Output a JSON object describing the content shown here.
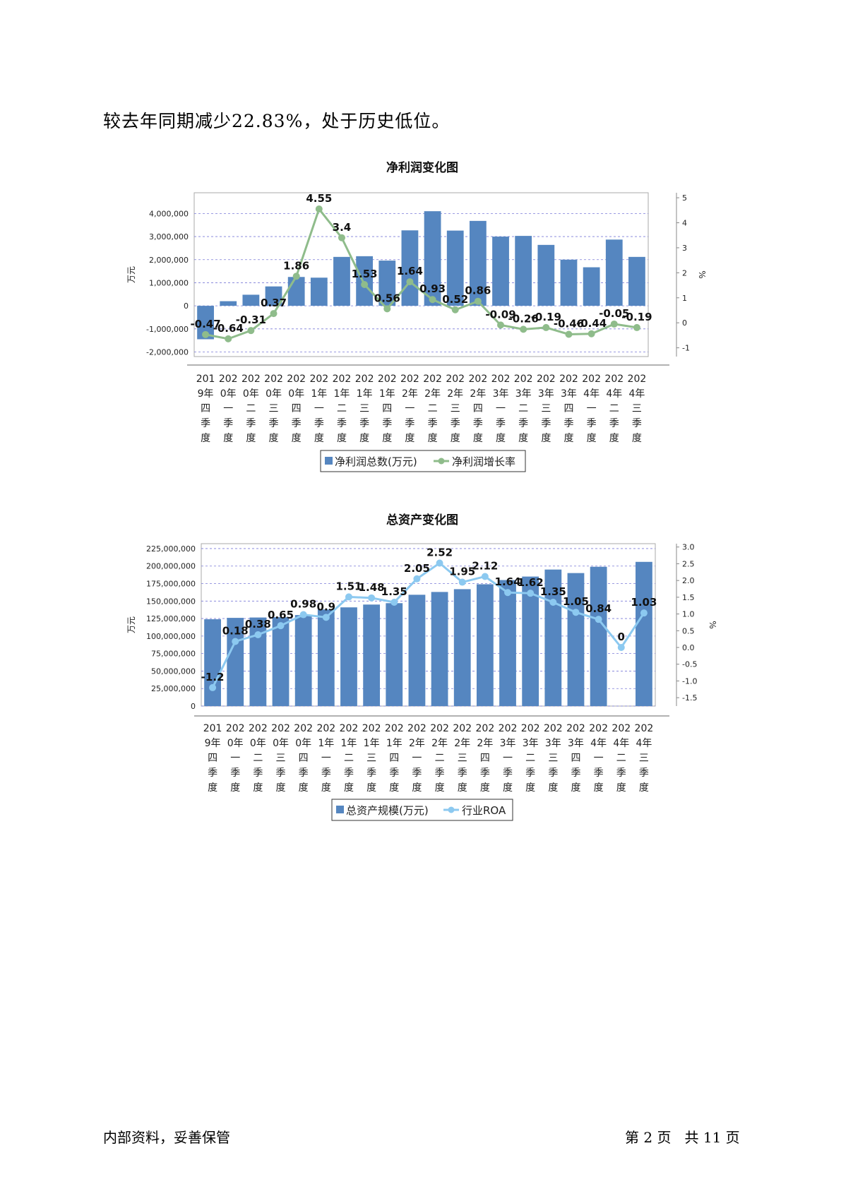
{
  "intro_text": "较去年同期减少22.83%，处于历史低位。",
  "footer": {
    "left": "内部资料，妥善保管",
    "page_label": "第 2 页   共 11 页"
  },
  "chart_data": [
    {
      "type": "bar",
      "title": "净利润变化图",
      "ylabel": "万元",
      "y2label": "%",
      "ylim": [
        -2200000,
        4900000
      ],
      "yticks": [
        -2000000,
        -1000000,
        0,
        1000000,
        2000000,
        3000000,
        4000000
      ],
      "ytick_labels": [
        "-2,000,000",
        "-1,000,000",
        "0",
        "1,000,000",
        "2,000,000",
        "3,000,000",
        "4,000,000"
      ],
      "y2lim": [
        -1.35,
        5.2
      ],
      "y2ticks": [
        -1,
        0,
        1,
        2,
        3,
        4,
        5
      ],
      "y2tick_labels": [
        "-1",
        "0",
        "1",
        "2",
        "3",
        "4",
        "5"
      ],
      "grid": true,
      "legend_position": "bottom",
      "categories": [
        [
          "201",
          "9年",
          "四",
          "季",
          "度"
        ],
        [
          "202",
          "0年",
          "一",
          "季",
          "度"
        ],
        [
          "202",
          "0年",
          "二",
          "季",
          "度"
        ],
        [
          "202",
          "0年",
          "三",
          "季",
          "度"
        ],
        [
          "202",
          "0年",
          "四",
          "季",
          "度"
        ],
        [
          "202",
          "1年",
          "一",
          "季",
          "度"
        ],
        [
          "202",
          "1年",
          "二",
          "季",
          "度"
        ],
        [
          "202",
          "1年",
          "三",
          "季",
          "度"
        ],
        [
          "202",
          "1年",
          "四",
          "季",
          "度"
        ],
        [
          "202",
          "2年",
          "一",
          "季",
          "度"
        ],
        [
          "202",
          "2年",
          "二",
          "季",
          "度"
        ],
        [
          "202",
          "2年",
          "三",
          "季",
          "度"
        ],
        [
          "202",
          "2年",
          "四",
          "季",
          "度"
        ],
        [
          "202",
          "3年",
          "一",
          "季",
          "度"
        ],
        [
          "202",
          "3年",
          "二",
          "季",
          "度"
        ],
        [
          "202",
          "3年",
          "三",
          "季",
          "度"
        ],
        [
          "202",
          "3年",
          "四",
          "季",
          "度"
        ],
        [
          "202",
          "4年",
          "一",
          "季",
          "度"
        ],
        [
          "202",
          "4年",
          "二",
          "季",
          "度"
        ],
        [
          "202",
          "4年",
          "三",
          "季",
          "度"
        ]
      ],
      "series": [
        {
          "name": "净利润总数(万元)",
          "kind": "bar",
          "color": "#5586c0",
          "values": [
            -1450000,
            200000,
            480000,
            840000,
            1250000,
            1220000,
            2120000,
            2150000,
            1960000,
            3270000,
            4100000,
            3260000,
            3680000,
            3000000,
            3030000,
            2640000,
            2000000,
            1670000,
            2870000,
            2120000
          ]
        },
        {
          "name": "净利润增长率",
          "kind": "line",
          "color": "#8fbc8b",
          "values": [
            -0.47,
            -0.64,
            -0.31,
            0.37,
            1.86,
            4.55,
            3.4,
            1.53,
            0.56,
            1.64,
            0.93,
            0.52,
            0.86,
            -0.09,
            -0.26,
            -0.19,
            -0.46,
            -0.44,
            -0.05,
            -0.19
          ],
          "labels": [
            "-0.47",
            "-0.64",
            "-0.31",
            "0.37",
            "1.86",
            "4.55",
            "3.4",
            "1.53",
            "0.56",
            "1.64",
            "0.93",
            "0.52",
            "0.86",
            "-0.09",
            "-0.26",
            "-0.19",
            "-0.46",
            "-0.44",
            "-0.05",
            "-0.19"
          ]
        }
      ]
    },
    {
      "type": "bar",
      "title": "总资产变化图",
      "ylabel": "万元",
      "y2label": "%",
      "ylim": [
        0,
        232000000
      ],
      "yticks": [
        0,
        25000000,
        50000000,
        75000000,
        100000000,
        125000000,
        150000000,
        175000000,
        200000000,
        225000000
      ],
      "ytick_labels": [
        "0",
        "25,000,000",
        "50,000,000",
        "75,000,000",
        "100,000,000",
        "125,000,000",
        "150,000,000",
        "175,000,000",
        "200,000,000",
        "225,000,000"
      ],
      "y2lim": [
        -1.75,
        3.1
      ],
      "y2ticks": [
        -1.5,
        -1.0,
        -0.5,
        0.0,
        0.5,
        1.0,
        1.5,
        2.0,
        2.5,
        3.0
      ],
      "y2tick_labels": [
        "-1.5",
        "-1.0",
        "-0.5",
        "0.0",
        "0.5",
        "1.0",
        "1.5",
        "2.0",
        "2.5",
        "3.0"
      ],
      "grid": true,
      "legend_position": "bottom",
      "categories": [
        [
          "201",
          "9年",
          "四",
          "季",
          "度"
        ],
        [
          "202",
          "0年",
          "一",
          "季",
          "度"
        ],
        [
          "202",
          "0年",
          "二",
          "季",
          "度"
        ],
        [
          "202",
          "0年",
          "三",
          "季",
          "度"
        ],
        [
          "202",
          "0年",
          "四",
          "季",
          "度"
        ],
        [
          "202",
          "1年",
          "一",
          "季",
          "度"
        ],
        [
          "202",
          "1年",
          "二",
          "季",
          "度"
        ],
        [
          "202",
          "1年",
          "三",
          "季",
          "度"
        ],
        [
          "202",
          "1年",
          "四",
          "季",
          "度"
        ],
        [
          "202",
          "2年",
          "一",
          "季",
          "度"
        ],
        [
          "202",
          "2年",
          "二",
          "季",
          "度"
        ],
        [
          "202",
          "2年",
          "三",
          "季",
          "度"
        ],
        [
          "202",
          "2年",
          "四",
          "季",
          "度"
        ],
        [
          "202",
          "3年",
          "一",
          "季",
          "度"
        ],
        [
          "202",
          "3年",
          "二",
          "季",
          "度"
        ],
        [
          "202",
          "3年",
          "三",
          "季",
          "度"
        ],
        [
          "202",
          "3年",
          "四",
          "季",
          "度"
        ],
        [
          "202",
          "4年",
          "一",
          "季",
          "度"
        ],
        [
          "202",
          "4年",
          "二",
          "季",
          "度"
        ],
        [
          "202",
          "4年",
          "三",
          "季",
          "度"
        ]
      ],
      "series": [
        {
          "name": "总资产规模(万元)",
          "kind": "bar",
          "color": "#5586c0",
          "values": [
            124000000,
            126000000,
            126500000,
            127000000,
            130000000,
            138000000,
            141000000,
            145000000,
            147000000,
            159000000,
            163000000,
            167000000,
            174000000,
            180000000,
            185000000,
            195000000,
            190000000,
            199000000,
            0,
            206000000
          ]
        },
        {
          "name": "行业ROA",
          "kind": "line",
          "color": "#8cc9f0",
          "values": [
            -1.2,
            0.18,
            0.38,
            0.65,
            0.98,
            0.9,
            1.51,
            1.48,
            1.35,
            2.05,
            2.52,
            1.95,
            2.12,
            1.64,
            1.62,
            1.35,
            1.05,
            0.84,
            0,
            1.03
          ],
          "labels": [
            "-1.2",
            "0.18",
            "0.38",
            "0.65",
            "0.98",
            "0.9",
            "1.51",
            "1.48",
            "1.35",
            "2.05",
            "2.52",
            "1.95",
            "2.12",
            "1.64",
            "1.62",
            "1.35",
            "1.05",
            "0.84",
            "0",
            "1.03"
          ]
        }
      ]
    }
  ]
}
